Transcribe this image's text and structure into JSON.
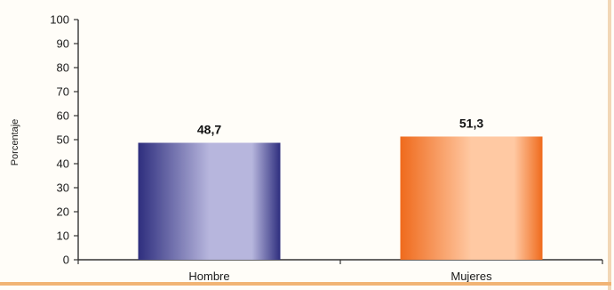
{
  "chart_data": {
    "type": "bar",
    "title": "",
    "xlabel": "",
    "ylabel": "Porcentaje",
    "ylim": [
      0,
      100
    ],
    "yticks": [
      0,
      10,
      20,
      30,
      40,
      50,
      60,
      70,
      80,
      90,
      100
    ],
    "categories": [
      "Hombre",
      "Mujeres"
    ],
    "values": [
      48.7,
      51.3
    ],
    "data_labels": [
      "48,7",
      "51,3"
    ],
    "grid": false,
    "legend": "none",
    "colors": {
      "Hombre": {
        "dark": "#2e2e7e",
        "light": "#b7b6dd"
      },
      "Mujeres": {
        "dark": "#ef6a1c",
        "light": "#ffc9a3"
      }
    }
  },
  "frame": {
    "border_right_color": "#f2d7b6",
    "border_bottom_color": "#f1b475"
  }
}
